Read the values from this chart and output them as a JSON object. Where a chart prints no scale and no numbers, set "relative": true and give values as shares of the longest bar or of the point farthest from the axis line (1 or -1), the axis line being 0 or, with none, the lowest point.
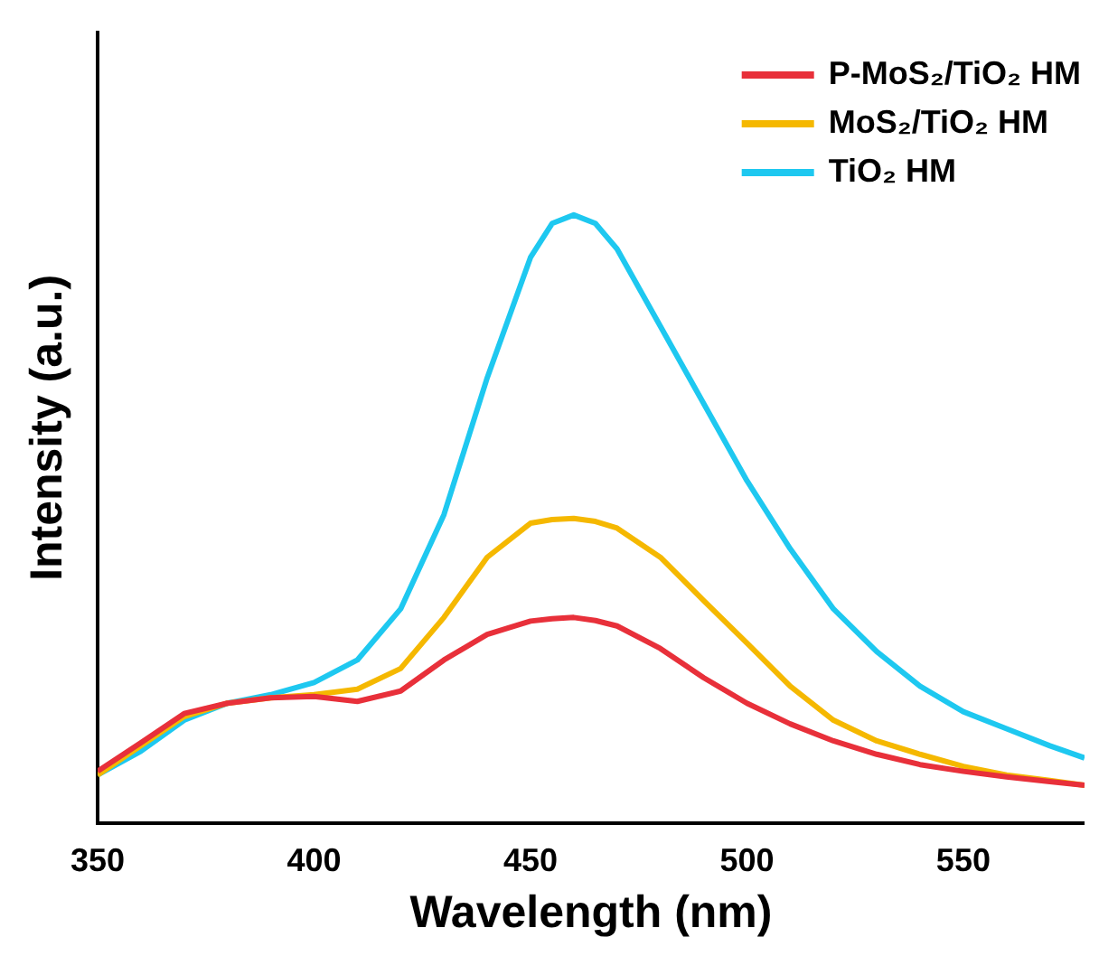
{
  "chart_data": {
    "type": "line",
    "xlabel": "Wavelength (nm)",
    "ylabel": "Intensity (a.u.)",
    "relative": true,
    "xlim": [
      350,
      578
    ],
    "xticks": [
      350,
      400,
      450,
      500,
      550
    ],
    "legend": "top right",
    "marker": "none",
    "x": [
      350,
      360,
      370,
      380,
      390,
      400,
      410,
      420,
      430,
      440,
      450,
      455,
      460,
      465,
      470,
      480,
      490,
      500,
      510,
      520,
      530,
      540,
      550,
      560,
      570,
      578
    ],
    "series": [
      {
        "name": "P-MoS₂/TiO₂ HM",
        "color": "#e8303a",
        "values": [
          0.085,
          0.132,
          0.18,
          0.197,
          0.206,
          0.208,
          0.2,
          0.217,
          0.268,
          0.31,
          0.332,
          0.336,
          0.338,
          0.333,
          0.324,
          0.287,
          0.239,
          0.197,
          0.163,
          0.135,
          0.113,
          0.096,
          0.085,
          0.076,
          0.068,
          0.062
        ]
      },
      {
        "name": "MoS₂/TiO₂ HM",
        "color": "#f5b800",
        "values": [
          0.079,
          0.127,
          0.175,
          0.197,
          0.206,
          0.211,
          0.22,
          0.254,
          0.338,
          0.437,
          0.493,
          0.499,
          0.501,
          0.496,
          0.485,
          0.437,
          0.366,
          0.296,
          0.225,
          0.169,
          0.135,
          0.113,
          0.093,
          0.079,
          0.07,
          0.062
        ]
      },
      {
        "name": "TiO₂ HM",
        "color": "#1ec8f0",
        "values": [
          0.079,
          0.118,
          0.169,
          0.197,
          0.211,
          0.231,
          0.268,
          0.352,
          0.507,
          0.732,
          0.93,
          0.986,
          1.0,
          0.986,
          0.944,
          0.817,
          0.69,
          0.563,
          0.451,
          0.352,
          0.282,
          0.225,
          0.183,
          0.155,
          0.127,
          0.107
        ]
      }
    ]
  }
}
